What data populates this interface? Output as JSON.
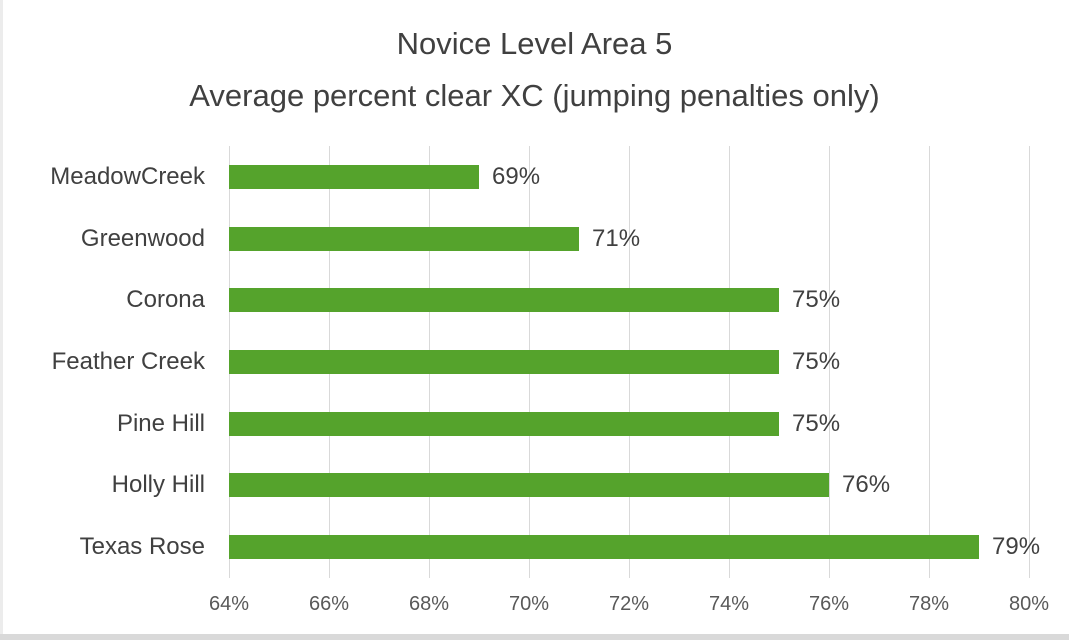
{
  "chart_data": {
    "type": "bar",
    "orientation": "horizontal",
    "title": "Novice Level Area 5",
    "subtitle": "Average percent clear XC (jumping penalties only)",
    "categories": [
      "MeadowCreek",
      "Greenwood",
      "Corona",
      "Feather Creek",
      "Pine Hill",
      "Holly Hill",
      "Texas Rose"
    ],
    "values": [
      69,
      71,
      75,
      75,
      75,
      76,
      79
    ],
    "data_labels": [
      "69%",
      "71%",
      "75%",
      "75%",
      "75%",
      "76%",
      "79%"
    ],
    "x_ticks": [
      {
        "value": 64,
        "label": "64%"
      },
      {
        "value": 66,
        "label": "66%"
      },
      {
        "value": 68,
        "label": "68%"
      },
      {
        "value": 70,
        "label": "70%"
      },
      {
        "value": 72,
        "label": "72%"
      },
      {
        "value": 74,
        "label": "74%"
      },
      {
        "value": 76,
        "label": "76%"
      },
      {
        "value": 78,
        "label": "78%"
      },
      {
        "value": 80,
        "label": "80%"
      }
    ],
    "xlim": [
      64,
      80
    ],
    "grid": true,
    "legend": "none",
    "colors": {
      "bar": "#55a32c",
      "title_text": "#404040",
      "label_text": "#404040",
      "tick_text": "#595959",
      "gridline": "#d9d9d9",
      "background": "#ffffff"
    }
  }
}
